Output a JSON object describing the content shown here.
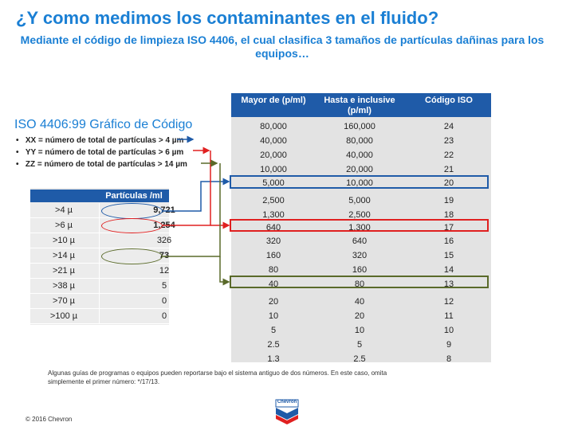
{
  "title": "¿Y como medimos los contaminantes en el fluido?",
  "subtitle": "Mediante el código de limpieza ISO 4406, el cual clasifica 3 tamaños de partículas dañinas para los equipos…",
  "iso_table": {
    "headers": [
      "Mayor de (p/ml)",
      "Hasta e inclusive (p/ml)",
      "Código ISO"
    ],
    "rows": [
      [
        "80,000",
        "160,000",
        "24"
      ],
      [
        "40,000",
        "80,000",
        "23"
      ],
      [
        "20,000",
        "40,000",
        "22"
      ],
      [
        "10,000",
        "20,000",
        "21"
      ],
      [
        "5,000",
        "10,000",
        "20"
      ],
      [
        "2,500",
        "5,000",
        "19"
      ],
      [
        "1,300",
        "2,500",
        "18"
      ],
      [
        "640",
        "1,300",
        "17"
      ],
      [
        "320",
        "640",
        "16"
      ],
      [
        "160",
        "320",
        "15"
      ],
      [
        "80",
        "160",
        "14"
      ],
      [
        "40",
        "80",
        "13"
      ],
      [
        "20",
        "40",
        "12"
      ],
      [
        "10",
        "20",
        "11"
      ],
      [
        "5",
        "10",
        "10"
      ],
      [
        "2.5",
        "5",
        "9"
      ],
      [
        "1.3",
        "2.5",
        "8"
      ]
    ]
  },
  "left_section": {
    "title": "ISO 4406:99 Gráfico de Código",
    "bullets": [
      "XX = número de total de partículas > 4 µm",
      "YY = número de total de partículas > 6 µm",
      "ZZ = número de total de partículas > 14 µm"
    ]
  },
  "particle_table": {
    "header": "Partículas /ml",
    "rows": [
      [
        ">4 µ",
        "9,721"
      ],
      [
        ">6 µ",
        "1,254"
      ],
      [
        ">10 µ",
        "326"
      ],
      [
        ">14 µ",
        "73"
      ],
      [
        ">21 µ",
        "12"
      ],
      [
        ">38 µ",
        "5"
      ],
      [
        ">70 µ",
        "0"
      ],
      [
        ">100 µ",
        "0"
      ]
    ]
  },
  "footnote": "Algunas guías de programas o equipos pueden reportarse bajo el sistema antiguo de dos números. En este caso, omita simplemente el primer número: */17/13.",
  "copyright": "© 2016 Chevron",
  "logo_text": "Chevron",
  "colors": {
    "title": "#1a7fd4",
    "header": "#1f5ba8",
    "blue": "#1f5ba8",
    "red": "#e02020",
    "olive": "#5a6a2a"
  }
}
